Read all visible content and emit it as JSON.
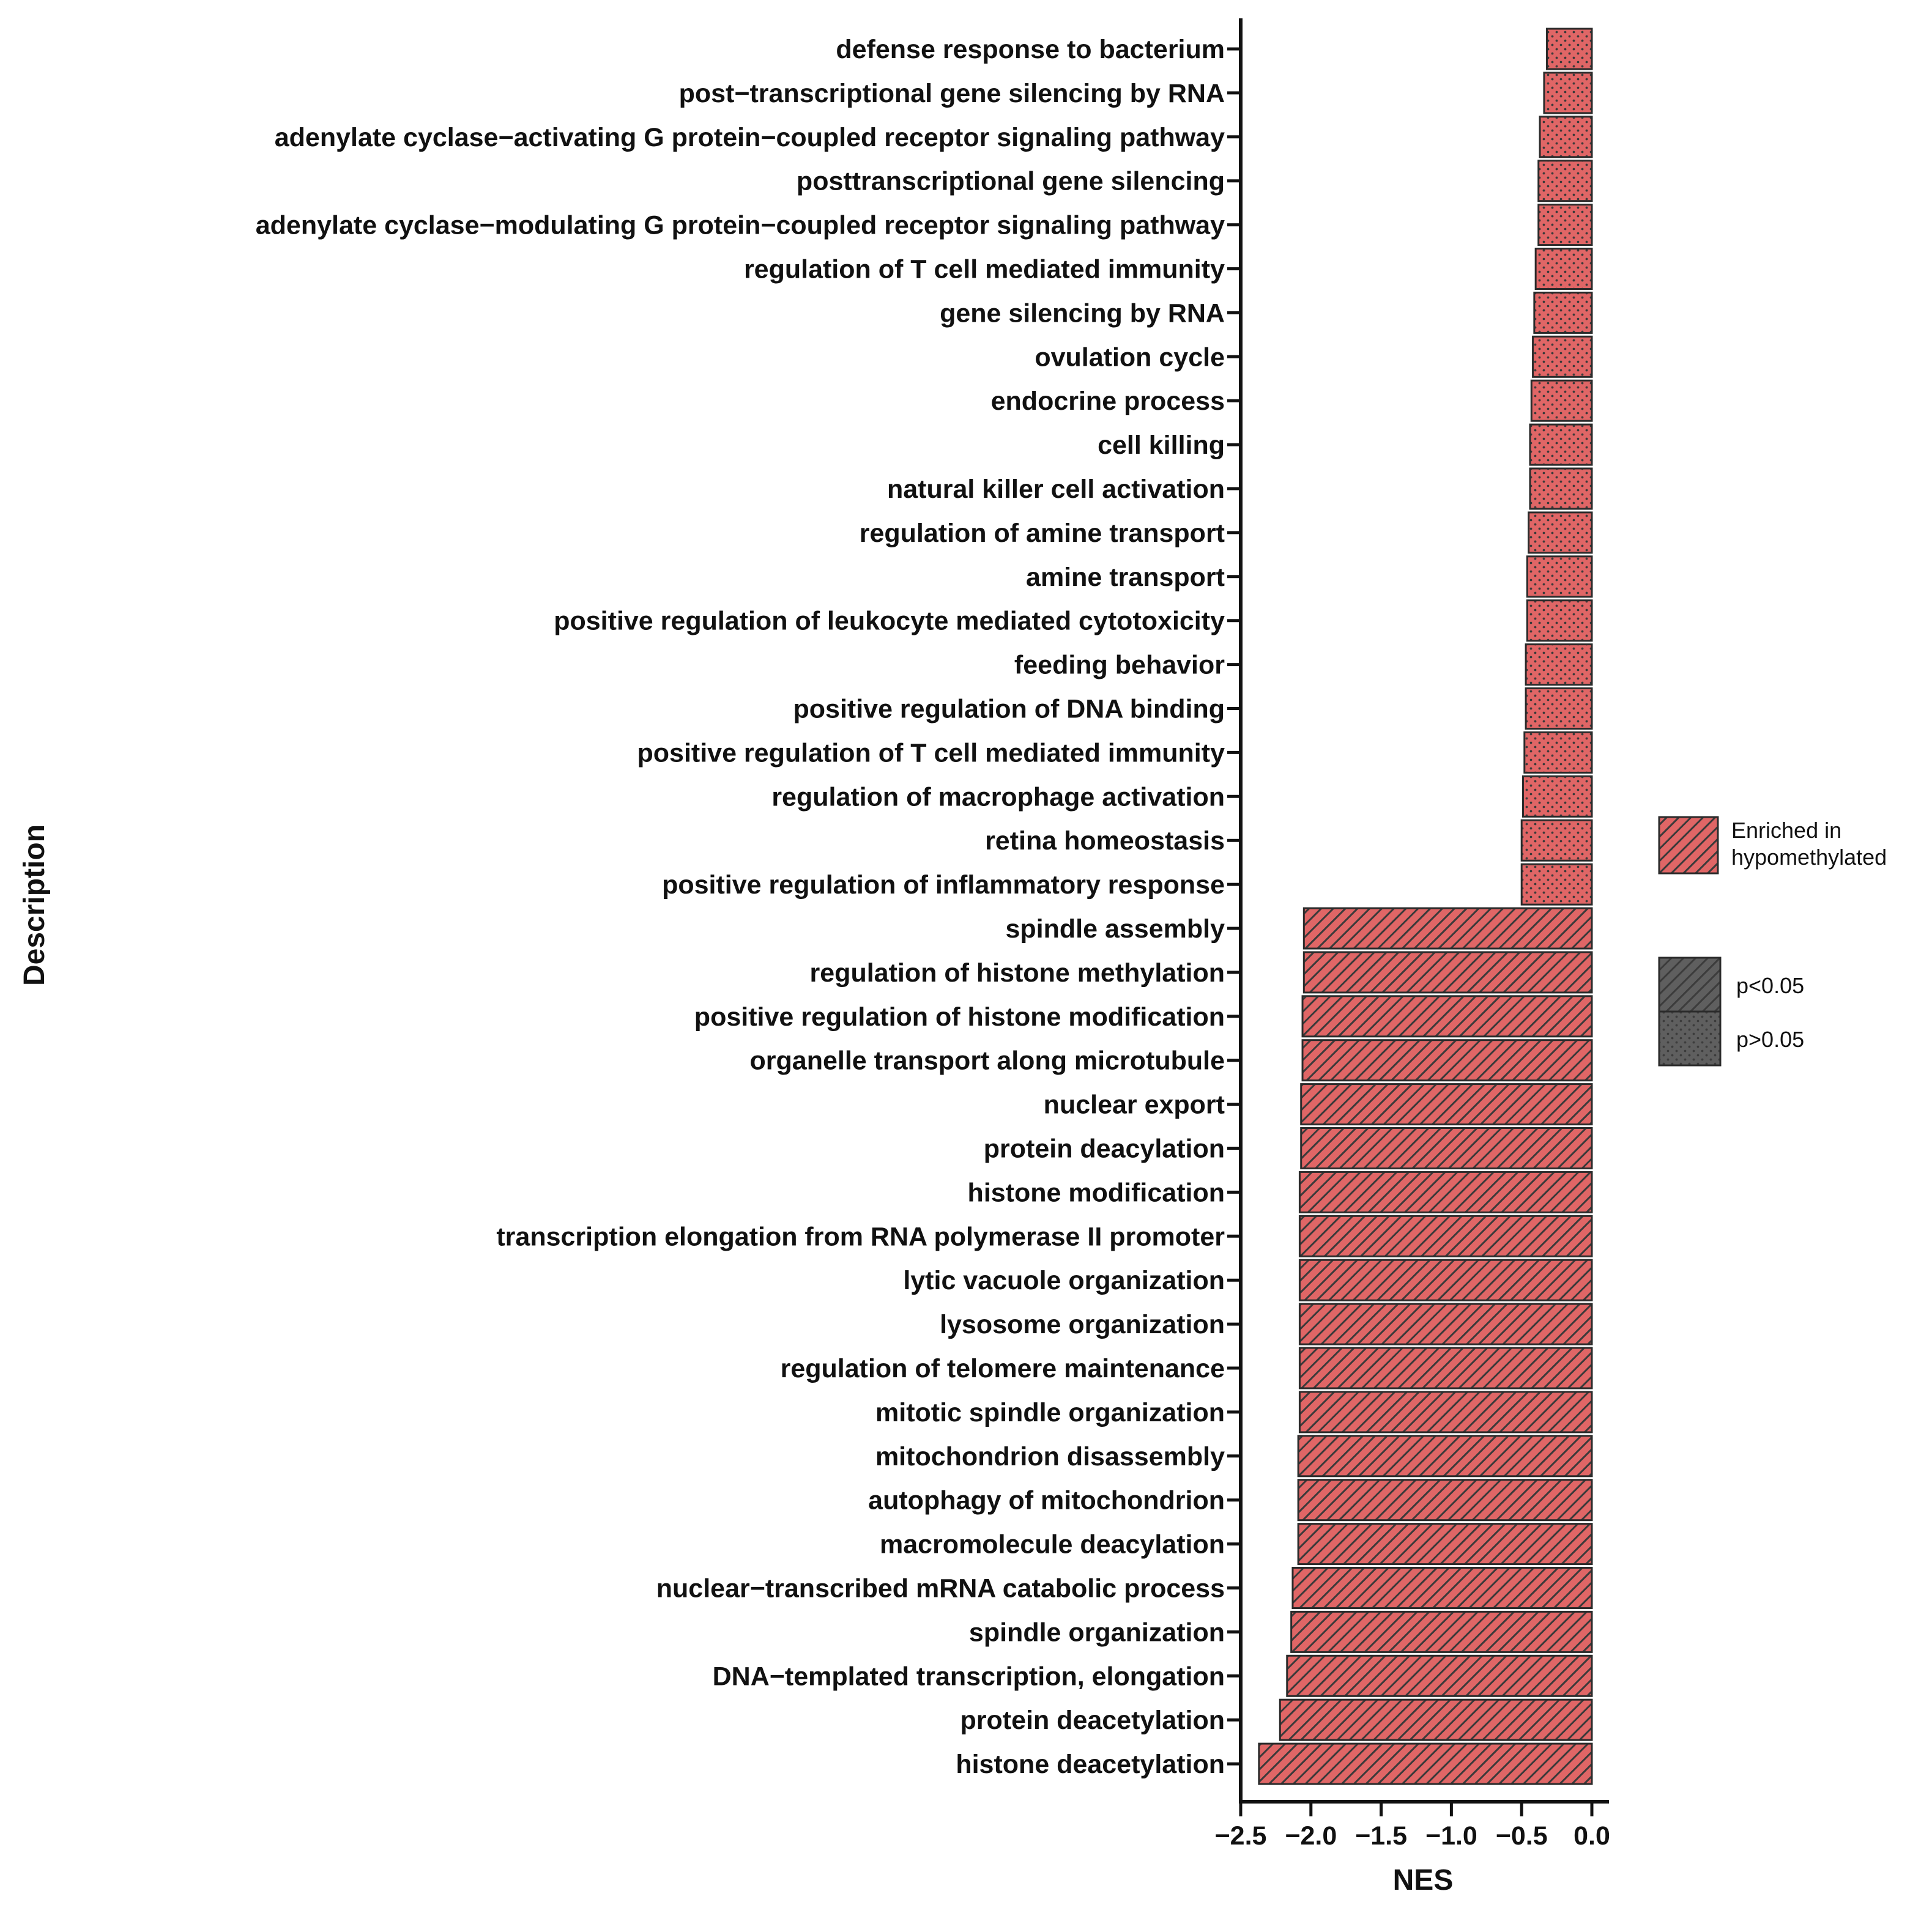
{
  "chart_data": {
    "type": "bar",
    "orientation": "horizontal",
    "xlabel": "NES",
    "ylabel": "Description",
    "xlim": [
      -2.5,
      0.0
    ],
    "xticks": [
      "-2.5",
      "-2.0",
      "-1.5",
      "-1.0",
      "-0.5",
      "0.0"
    ],
    "xtick_values": [
      -2.5,
      -2.0,
      -1.5,
      -1.0,
      -0.5,
      0.0
    ],
    "grid": false,
    "colors": {
      "bar_fill": "#e06666",
      "bar_edge": "#2b2b2b",
      "pattern": "#3a3a3a",
      "legend_gray": "#5f5f5f",
      "axis": "#111111"
    },
    "legend": {
      "placement": "right",
      "enrichment_label_line1": "Enriched in",
      "enrichment_label_line2": "hypomethylated",
      "sig_label": "p<0.05",
      "nonsig_label": "p>0.05"
    },
    "bars": [
      {
        "label": "defense response to bacterium",
        "value": -0.32,
        "significant": false
      },
      {
        "label": "post−transcriptional gene silencing by RNA",
        "value": -0.34,
        "significant": false
      },
      {
        "label": "adenylate cyclase−activating G protein−coupled receptor signaling pathway",
        "value": -0.37,
        "significant": false
      },
      {
        "label": "posttranscriptional gene silencing",
        "value": -0.38,
        "significant": false
      },
      {
        "label": "adenylate cyclase−modulating G protein−coupled receptor signaling pathway",
        "value": -0.38,
        "significant": false
      },
      {
        "label": "regulation of T cell mediated immunity",
        "value": -0.4,
        "significant": false
      },
      {
        "label": "gene silencing by RNA",
        "value": -0.41,
        "significant": false
      },
      {
        "label": "ovulation cycle",
        "value": -0.42,
        "significant": false
      },
      {
        "label": "endocrine process",
        "value": -0.43,
        "significant": false
      },
      {
        "label": "cell killing",
        "value": -0.44,
        "significant": false
      },
      {
        "label": "natural killer cell activation",
        "value": -0.44,
        "significant": false
      },
      {
        "label": "regulation of amine transport",
        "value": -0.45,
        "significant": false
      },
      {
        "label": "amine transport",
        "value": -0.46,
        "significant": false
      },
      {
        "label": "positive regulation of leukocyte mediated cytotoxicity",
        "value": -0.46,
        "significant": false
      },
      {
        "label": "feeding behavior",
        "value": -0.47,
        "significant": false
      },
      {
        "label": "positive regulation of DNA binding",
        "value": -0.47,
        "significant": false
      },
      {
        "label": "positive regulation of T cell mediated immunity",
        "value": -0.48,
        "significant": false
      },
      {
        "label": "regulation of macrophage activation",
        "value": -0.49,
        "significant": false
      },
      {
        "label": "retina homeostasis",
        "value": -0.5,
        "significant": false
      },
      {
        "label": "positive regulation of inflammatory response",
        "value": -0.5,
        "significant": false
      },
      {
        "label": "spindle assembly",
        "value": -2.05,
        "significant": true
      },
      {
        "label": "regulation of histone methylation",
        "value": -2.05,
        "significant": true
      },
      {
        "label": "positive regulation of histone modification",
        "value": -2.06,
        "significant": true
      },
      {
        "label": "organelle transport along microtubule",
        "value": -2.06,
        "significant": true
      },
      {
        "label": "nuclear export",
        "value": -2.07,
        "significant": true
      },
      {
        "label": "protein deacylation",
        "value": -2.07,
        "significant": true
      },
      {
        "label": "histone modification",
        "value": -2.08,
        "significant": true
      },
      {
        "label": "transcription elongation from RNA polymerase II promoter",
        "value": -2.08,
        "significant": true
      },
      {
        "label": "lytic vacuole organization",
        "value": -2.08,
        "significant": true
      },
      {
        "label": "lysosome organization",
        "value": -2.08,
        "significant": true
      },
      {
        "label": "regulation of telomere maintenance",
        "value": -2.08,
        "significant": true
      },
      {
        "label": "mitotic spindle organization",
        "value": -2.08,
        "significant": true
      },
      {
        "label": "mitochondrion disassembly",
        "value": -2.09,
        "significant": true
      },
      {
        "label": "autophagy of mitochondrion",
        "value": -2.09,
        "significant": true
      },
      {
        "label": "macromolecule deacylation",
        "value": -2.09,
        "significant": true
      },
      {
        "label": "nuclear−transcribed mRNA catabolic process",
        "value": -2.13,
        "significant": true
      },
      {
        "label": "spindle organization",
        "value": -2.14,
        "significant": true
      },
      {
        "label": "DNA−templated transcription, elongation",
        "value": -2.17,
        "significant": true
      },
      {
        "label": "protein deacetylation",
        "value": -2.22,
        "significant": true
      },
      {
        "label": "histone deacetylation",
        "value": -2.37,
        "significant": true
      }
    ]
  }
}
